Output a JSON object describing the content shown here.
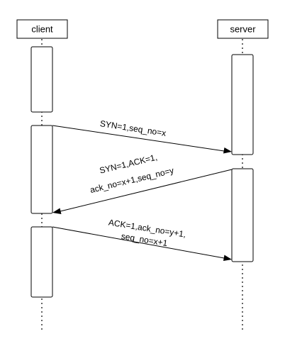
{
  "participants": {
    "client": "client",
    "server": "server"
  },
  "messages": {
    "syn": {
      "line1": "SYN=1,seq_no=x"
    },
    "syn_ack": {
      "line1": "SYN=1,ACK=1,",
      "line2": "ack_no=x+1,seq_no=y"
    },
    "ack": {
      "line1": "ACK=1,ack_no=y+1,",
      "line2": "seq_no=x+1"
    }
  }
}
